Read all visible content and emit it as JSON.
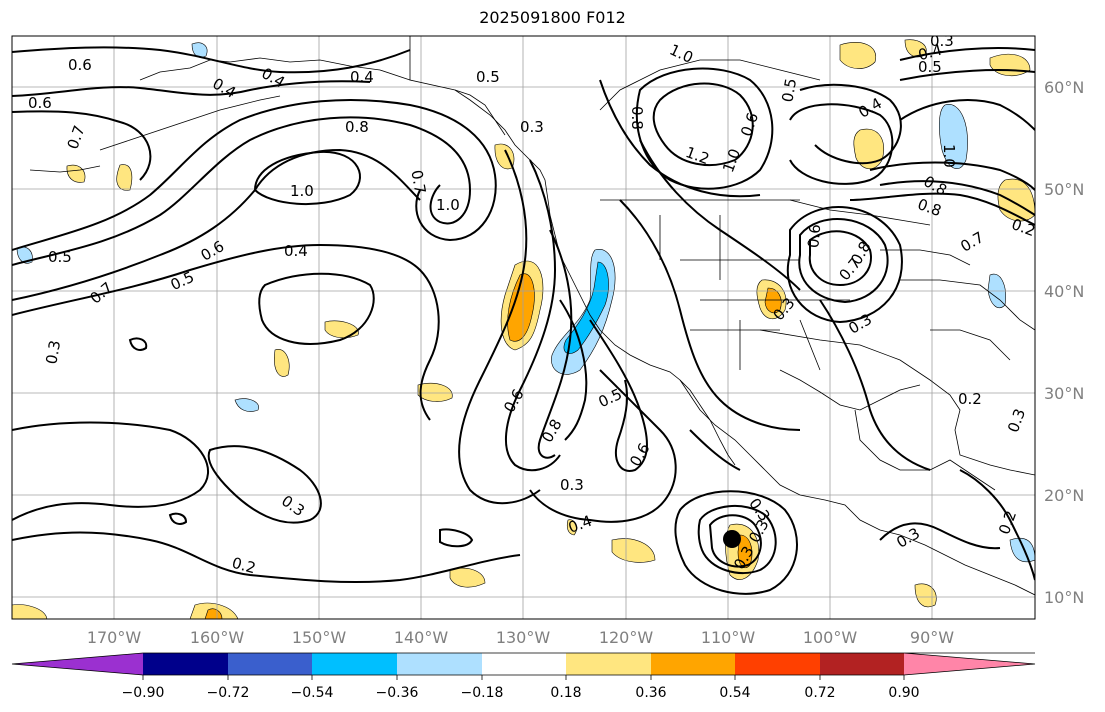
{
  "title": "2025091800 F012",
  "lon_labels": [
    "170°W",
    "160°W",
    "150°W",
    "140°W",
    "130°W",
    "120°W",
    "110°W",
    "100°W",
    "90°W"
  ],
  "lat_labels": [
    "60°N",
    "50°N",
    "40°N",
    "30°N",
    "20°N",
    "10°N"
  ],
  "colorbar": {
    "colors": [
      "#9b30d0",
      "#00008b",
      "#3a5fcd",
      "#00bfff",
      "#aee0ff",
      "#ffffff",
      "#ffe680",
      "#ffa500",
      "#ff4000",
      "#b22222",
      "#ff85a8"
    ],
    "tick_labels": [
      "−0.90",
      "−0.72",
      "−0.54",
      "−0.36",
      "−0.18",
      "0.18",
      "0.36",
      "0.54",
      "0.72",
      "0.90"
    ]
  },
  "contour_labels": [
    "0.6",
    "0.6",
    "0.7",
    "0.4",
    "0.4",
    "0.4",
    "0.5",
    "0.8",
    "1.0",
    "0.7",
    "1.0",
    "0.5",
    "0.6",
    "0.4",
    "0.5",
    "0.7",
    "0.3",
    "0.3",
    "0.6",
    "0.8",
    "0.5",
    "0.6",
    "0.3",
    "0.4",
    "0.3",
    "0.3",
    "0.2",
    "1.0",
    "0.8",
    "1.2",
    "0.6",
    "1.0",
    "0.5",
    "0.4",
    "1.0",
    "0.8",
    "0.8",
    "0.7",
    "0.8",
    "0.3",
    "0.3",
    "0.2",
    "0.3",
    "0.3",
    "0.2",
    "0.3",
    "0.3",
    "0.5",
    "0.4",
    "0.3",
    "0.2",
    "0.7",
    "0.6"
  ],
  "map_features": {
    "storm_marker": "storm-center-dot",
    "colors": {
      "contour": "#000000",
      "grid": "#a0a0a0",
      "coast": "#000000"
    }
  }
}
